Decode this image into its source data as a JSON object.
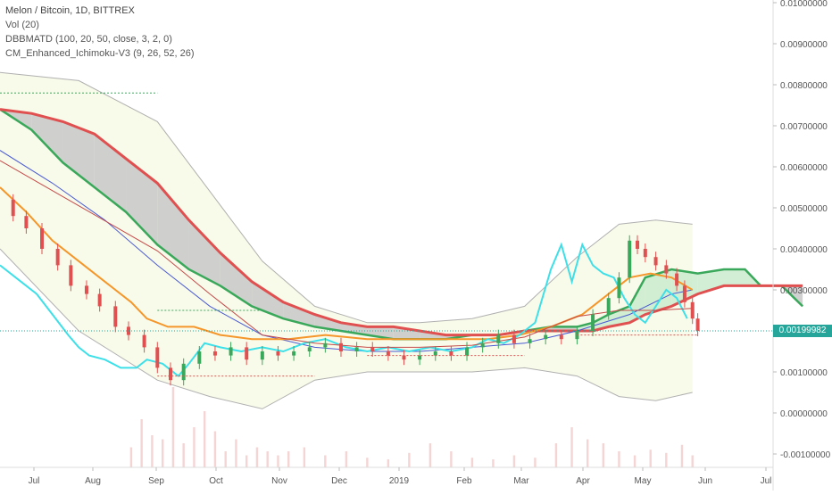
{
  "header": {
    "title": "Melon / Bitcoin, 1D, BITTREX",
    "indicators": [
      "Vol (20)",
      "DBBMATD (100, 20, 50, close, 3, 2, 0)",
      "CM_Enhanced_Ichimoku-V3 (9, 26, 52, 26)"
    ]
  },
  "last_price": "0.00199982",
  "colors": {
    "price_tag": "#26a69a",
    "cloud_red": "#e05050",
    "cloud_green": "#3aa85a",
    "kijun_orange": "#f5962a",
    "tenkan_cyan": "#3de0e8",
    "ma_blue": "#4a5bd4",
    "ma_red": "#c44a4a",
    "bb_band": "#b0b0b0",
    "bb_fill": "#f9fbea",
    "candle_up": "#3aa85a",
    "candle_down": "#e05050"
  },
  "chart_data": {
    "type": "line",
    "instrument": "Melon / Bitcoin, 1D, BITTREX",
    "x_tick_labels": [
      "Jul",
      "Aug",
      "Sep",
      "Oct",
      "Nov",
      "Dec",
      "2019",
      "Feb",
      "Mar",
      "Apr",
      "May",
      "Jun",
      "Jul"
    ],
    "y_tick_labels": [
      "0.01000000",
      "0.00900000",
      "0.00800000",
      "0.00700000",
      "0.00600000",
      "0.00500000",
      "0.00400000",
      "0.00300000",
      "0.00200000",
      "0.00100000",
      "0.00000000",
      "-0.00100000"
    ],
    "ylim": [
      -0.00125,
      0.0101
    ],
    "grid": false,
    "series": [
      {
        "name": "Close",
        "values": [
          [
            0,
            0.0052
          ],
          [
            5,
            0.0048
          ],
          [
            10,
            0.0045
          ],
          [
            16,
            0.004
          ],
          [
            22,
            0.0036
          ],
          [
            27,
            0.0031
          ],
          [
            33,
            0.0029
          ],
          [
            38,
            0.0026
          ],
          [
            44,
            0.0021
          ],
          [
            49,
            0.0019
          ],
          [
            55,
            0.0016
          ],
          [
            60,
            0.0011
          ],
          [
            65,
            0.0008
          ],
          [
            70,
            0.0012
          ],
          [
            76,
            0.0015
          ],
          [
            82,
            0.0014
          ],
          [
            88,
            0.0016
          ],
          [
            94,
            0.0013
          ],
          [
            100,
            0.0015
          ],
          [
            106,
            0.0014
          ],
          [
            112,
            0.0015
          ],
          [
            118,
            0.0016
          ],
          [
            124,
            0.0017
          ],
          [
            130,
            0.0015
          ],
          [
            136,
            0.0016
          ],
          [
            142,
            0.0015
          ],
          [
            148,
            0.0014
          ],
          [
            154,
            0.0013
          ],
          [
            160,
            0.0014
          ],
          [
            166,
            0.0015
          ],
          [
            172,
            0.0014
          ],
          [
            178,
            0.0016
          ],
          [
            184,
            0.0017
          ],
          [
            190,
            0.0019
          ],
          [
            196,
            0.0017
          ],
          [
            202,
            0.0018
          ],
          [
            208,
            0.0019
          ],
          [
            214,
            0.0018
          ],
          [
            220,
            0.002
          ],
          [
            226,
            0.0024
          ],
          [
            232,
            0.0028
          ],
          [
            236,
            0.0033
          ],
          [
            240,
            0.0042
          ],
          [
            243,
            0.004
          ],
          [
            246,
            0.0038
          ],
          [
            250,
            0.0036
          ],
          [
            254,
            0.0034
          ],
          [
            258,
            0.0031
          ],
          [
            261,
            0.0027
          ],
          [
            264,
            0.0023
          ],
          [
            266,
            0.002
          ]
        ]
      },
      {
        "name": "Tenkan",
        "values": [
          [
            0,
            0.0036
          ],
          [
            8,
            0.0032
          ],
          [
            14,
            0.0029
          ],
          [
            20,
            0.0024
          ],
          [
            26,
            0.0019
          ],
          [
            30,
            0.0016
          ],
          [
            34,
            0.0014
          ],
          [
            40,
            0.0013
          ],
          [
            46,
            0.0011
          ],
          [
            52,
            0.0011
          ],
          [
            56,
            0.0013
          ],
          [
            62,
            0.0012
          ],
          [
            68,
            0.0009
          ],
          [
            72,
            0.0012
          ],
          [
            78,
            0.0017
          ],
          [
            84,
            0.0016
          ],
          [
            92,
            0.0015
          ],
          [
            100,
            0.0016
          ],
          [
            108,
            0.0015
          ],
          [
            116,
            0.0017
          ],
          [
            124,
            0.0018
          ],
          [
            132,
            0.0016
          ],
          [
            140,
            0.0015
          ],
          [
            148,
            0.0016
          ],
          [
            156,
            0.0015
          ],
          [
            164,
            0.0016
          ],
          [
            172,
            0.0015
          ],
          [
            180,
            0.0016
          ],
          [
            186,
            0.0018
          ],
          [
            192,
            0.0017
          ],
          [
            198,
            0.0019
          ],
          [
            204,
            0.0022
          ],
          [
            210,
            0.0035
          ],
          [
            214,
            0.0041
          ],
          [
            218,
            0.0032
          ],
          [
            222,
            0.0041
          ],
          [
            226,
            0.0036
          ],
          [
            230,
            0.0034
          ],
          [
            234,
            0.0033
          ],
          [
            238,
            0.0028
          ],
          [
            242,
            0.0024
          ],
          [
            246,
            0.0022
          ],
          [
            250,
            0.0026
          ],
          [
            254,
            0.003
          ],
          [
            258,
            0.0028
          ],
          [
            262,
            0.0023
          ]
        ]
      },
      {
        "name": "Kijun",
        "values": [
          [
            0,
            0.0055
          ],
          [
            10,
            0.0049
          ],
          [
            20,
            0.0042
          ],
          [
            30,
            0.0037
          ],
          [
            40,
            0.0032
          ],
          [
            50,
            0.0027
          ],
          [
            56,
            0.0023
          ],
          [
            64,
            0.0021
          ],
          [
            74,
            0.0021
          ],
          [
            84,
            0.0019
          ],
          [
            96,
            0.0018
          ],
          [
            110,
            0.0018
          ],
          [
            124,
            0.0019
          ],
          [
            140,
            0.0018
          ],
          [
            156,
            0.0018
          ],
          [
            172,
            0.0018
          ],
          [
            186,
            0.0018
          ],
          [
            198,
            0.0019
          ],
          [
            210,
            0.0021
          ],
          [
            222,
            0.0024
          ],
          [
            232,
            0.0029
          ],
          [
            240,
            0.0033
          ],
          [
            248,
            0.0034
          ],
          [
            256,
            0.0033
          ],
          [
            264,
            0.003
          ]
        ]
      },
      {
        "name": "MA",
        "values": [
          [
            0,
            0.0064
          ],
          [
            20,
            0.0056
          ],
          [
            40,
            0.0047
          ],
          [
            60,
            0.0036
          ],
          [
            80,
            0.0026
          ],
          [
            100,
            0.0019
          ],
          [
            120,
            0.0016
          ],
          [
            140,
            0.0015
          ],
          [
            160,
            0.0015
          ],
          [
            180,
            0.0016
          ],
          [
            200,
            0.0017
          ],
          [
            220,
            0.002
          ],
          [
            240,
            0.0024
          ],
          [
            256,
            0.0029
          ],
          [
            264,
            0.003
          ]
        ]
      },
      {
        "name": "BB Upper",
        "values": [
          [
            0,
            0.0083
          ],
          [
            30,
            0.0081
          ],
          [
            60,
            0.0071
          ],
          [
            80,
            0.0054
          ],
          [
            100,
            0.0037
          ],
          [
            120,
            0.0026
          ],
          [
            140,
            0.0022
          ],
          [
            160,
            0.0022
          ],
          [
            180,
            0.0023
          ],
          [
            200,
            0.0026
          ],
          [
            220,
            0.0038
          ],
          [
            236,
            0.0046
          ],
          [
            250,
            0.0047
          ],
          [
            264,
            0.0046
          ]
        ]
      },
      {
        "name": "BB Lower",
        "values": [
          [
            0,
            0.004
          ],
          [
            30,
            0.002
          ],
          [
            60,
            0.0008
          ],
          [
            80,
            0.0004
          ],
          [
            100,
            0.0001
          ],
          [
            120,
            0.0008
          ],
          [
            140,
            0.001
          ],
          [
            160,
            0.001
          ],
          [
            180,
            0.001
          ],
          [
            200,
            0.0011
          ],
          [
            220,
            0.0009
          ],
          [
            236,
            0.0004
          ],
          [
            250,
            0.0003
          ],
          [
            264,
            0.0005
          ]
        ]
      },
      {
        "name": "Senkou A",
        "values": [
          [
            0,
            0.0074
          ],
          [
            12,
            0.0069
          ],
          [
            24,
            0.0061
          ],
          [
            36,
            0.0055
          ],
          [
            48,
            0.0049
          ],
          [
            60,
            0.0041
          ],
          [
            72,
            0.0035
          ],
          [
            84,
            0.0031
          ],
          [
            96,
            0.0026
          ],
          [
            108,
            0.0023
          ],
          [
            120,
            0.0021
          ],
          [
            130,
            0.002
          ],
          [
            140,
            0.0019
          ],
          [
            150,
            0.0018
          ],
          [
            160,
            0.0018
          ],
          [
            170,
            0.0018
          ],
          [
            180,
            0.0019
          ],
          [
            190,
            0.0019
          ],
          [
            200,
            0.002
          ],
          [
            210,
            0.0021
          ],
          [
            220,
            0.0021
          ],
          [
            226,
            0.0022
          ],
          [
            232,
            0.0024
          ],
          [
            240,
            0.0026
          ],
          [
            246,
            0.0033
          ],
          [
            256,
            0.0035
          ],
          [
            266,
            0.0034
          ],
          [
            276,
            0.0035
          ],
          [
            284,
            0.0035
          ],
          [
            290,
            0.0031
          ],
          [
            298,
            0.0031
          ],
          [
            306,
            0.0026
          ]
        ]
      },
      {
        "name": "Senkou B",
        "values": [
          [
            0,
            0.0074
          ],
          [
            12,
            0.0073
          ],
          [
            24,
            0.0071
          ],
          [
            36,
            0.0068
          ],
          [
            48,
            0.0062
          ],
          [
            60,
            0.0056
          ],
          [
            72,
            0.0047
          ],
          [
            84,
            0.0039
          ],
          [
            96,
            0.0032
          ],
          [
            108,
            0.0027
          ],
          [
            120,
            0.0024
          ],
          [
            130,
            0.0022
          ],
          [
            140,
            0.0021
          ],
          [
            150,
            0.0021
          ],
          [
            160,
            0.002
          ],
          [
            170,
            0.0019
          ],
          [
            180,
            0.0019
          ],
          [
            190,
            0.0019
          ],
          [
            200,
            0.002
          ],
          [
            210,
            0.002
          ],
          [
            220,
            0.002
          ],
          [
            226,
            0.002
          ],
          [
            232,
            0.0021
          ],
          [
            240,
            0.0022
          ],
          [
            246,
            0.0024
          ],
          [
            256,
            0.0026
          ],
          [
            266,
            0.0029
          ],
          [
            276,
            0.0031
          ],
          [
            284,
            0.0031
          ],
          [
            290,
            0.0031
          ],
          [
            298,
            0.0031
          ],
          [
            306,
            0.0031
          ]
        ]
      },
      {
        "name": "Volume",
        "values": [
          [
            50,
            0.25
          ],
          [
            54,
            0.6
          ],
          [
            58,
            0.4
          ],
          [
            62,
            0.35
          ],
          [
            66,
            1.0
          ],
          [
            70,
            0.3
          ],
          [
            74,
            0.5
          ],
          [
            78,
            0.7
          ],
          [
            82,
            0.45
          ],
          [
            86,
            0.2
          ],
          [
            90,
            0.35
          ],
          [
            94,
            0.15
          ],
          [
            98,
            0.25
          ],
          [
            102,
            0.2
          ],
          [
            106,
            0.15
          ],
          [
            110,
            0.2
          ],
          [
            116,
            0.25
          ],
          [
            124,
            0.15
          ],
          [
            132,
            0.2
          ],
          [
            140,
            0.12
          ],
          [
            148,
            0.1
          ],
          [
            156,
            0.18
          ],
          [
            164,
            0.3
          ],
          [
            172,
            0.2
          ],
          [
            180,
            0.12
          ],
          [
            188,
            0.1
          ],
          [
            196,
            0.15
          ],
          [
            204,
            0.12
          ],
          [
            212,
            0.3
          ],
          [
            218,
            0.5
          ],
          [
            224,
            0.35
          ],
          [
            230,
            0.3
          ],
          [
            236,
            0.2
          ],
          [
            242,
            0.15
          ],
          [
            248,
            0.22
          ],
          [
            254,
            0.18
          ],
          [
            260,
            0.28
          ],
          [
            264,
            0.15
          ]
        ]
      }
    ]
  }
}
